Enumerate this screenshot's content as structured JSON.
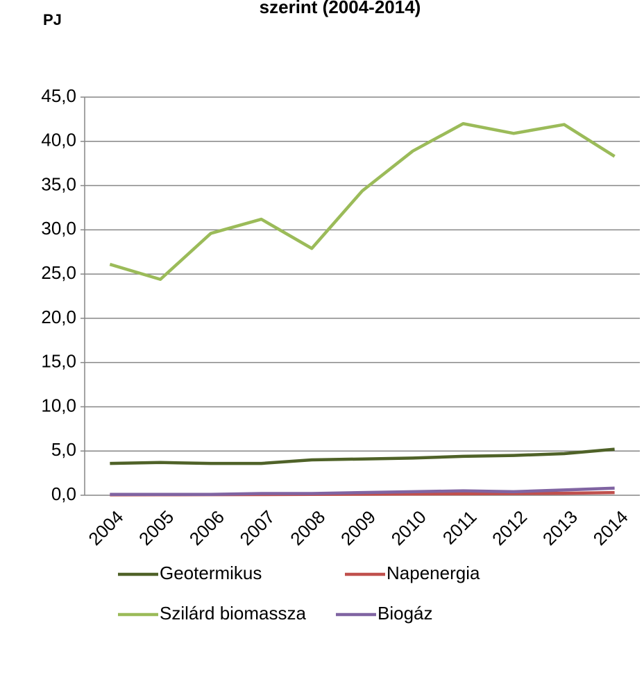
{
  "chart_data": {
    "type": "line",
    "title": "szerint (2004-2014)",
    "y_label": "PJ",
    "categories": [
      "2004",
      "2005",
      "2006",
      "2007",
      "2008",
      "2009",
      "2010",
      "2011",
      "2012",
      "2013",
      "2014"
    ],
    "series": [
      {
        "name": "Geotermikus",
        "color": "#4f6228",
        "values": [
          3.6,
          3.7,
          3.6,
          3.6,
          4.0,
          4.1,
          4.2,
          4.4,
          4.5,
          4.7,
          5.2
        ]
      },
      {
        "name": "Napenergia",
        "color": "#c0504d",
        "values": [
          0.05,
          0.06,
          0.07,
          0.08,
          0.1,
          0.12,
          0.14,
          0.17,
          0.2,
          0.23,
          0.3
        ]
      },
      {
        "name": "Szilárd biomassza",
        "color": "#9bbb59",
        "values": [
          26.1,
          24.4,
          29.6,
          31.2,
          27.9,
          34.4,
          38.9,
          42.0,
          40.9,
          41.9,
          38.3
        ]
      },
      {
        "name": "Biogáz",
        "color": "#8064a2",
        "values": [
          0.1,
          0.1,
          0.1,
          0.2,
          0.2,
          0.3,
          0.4,
          0.5,
          0.4,
          0.6,
          0.8
        ]
      }
    ],
    "ylim": [
      0,
      45
    ],
    "yticks": [
      {
        "value": 0,
        "label": "0,0"
      },
      {
        "value": 5,
        "label": "5,0"
      },
      {
        "value": 10,
        "label": "10,0"
      },
      {
        "value": 15,
        "label": "15,0"
      },
      {
        "value": 20,
        "label": "20,0"
      },
      {
        "value": 25,
        "label": "25,0"
      },
      {
        "value": 30,
        "label": "30,0"
      },
      {
        "value": 35,
        "label": "35,0"
      },
      {
        "value": 40,
        "label": "40,0"
      },
      {
        "value": 45,
        "label": "45,0"
      }
    ],
    "grid": true,
    "legend": "bottom"
  }
}
